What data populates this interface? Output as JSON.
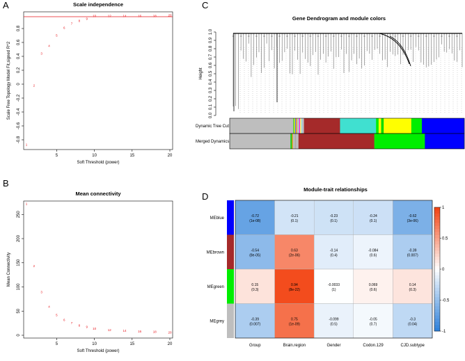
{
  "panels": {
    "A": {
      "letter": "A"
    },
    "B": {
      "letter": "B"
    },
    "C": {
      "letter": "C"
    },
    "D": {
      "letter": "D"
    }
  },
  "chart_data": [
    {
      "id": "A",
      "type": "scatter",
      "title": "Scale independence",
      "xlabel": "Soft Threshold (power)",
      "ylabel": "Scale Free Topology Model Fit,signed R^2",
      "x": [
        1,
        2,
        3,
        4,
        5,
        6,
        7,
        8,
        9,
        10,
        12,
        14,
        16,
        18,
        20
      ],
      "y": [
        -0.87,
        -0.02,
        0.44,
        0.55,
        0.7,
        0.81,
        0.87,
        0.91,
        0.94,
        0.98,
        0.98,
        0.98,
        0.98,
        0.98,
        0.99
      ],
      "point_labels": [
        "1",
        "2",
        "3",
        "4",
        "5",
        "6",
        "7",
        "8",
        "9",
        "10",
        "12",
        "14",
        "16",
        "18",
        "20"
      ],
      "xlim": [
        1,
        20
      ],
      "ylim": [
        -0.9,
        1.0
      ],
      "xticks": [
        5,
        10,
        15,
        20
      ],
      "yticks": [
        -0.8,
        -0.6,
        -0.4,
        -0.2,
        0.0,
        0.2,
        0.4,
        0.6,
        0.8
      ],
      "hline": 0.97,
      "colors": {
        "points": "#e8171d",
        "hline": "#e8171d"
      }
    },
    {
      "id": "B",
      "type": "scatter",
      "title": "Mean connectivity",
      "xlabel": "Soft Threshold (power)",
      "ylabel": "Mean Connectivity",
      "x": [
        1,
        2,
        3,
        4,
        5,
        6,
        7,
        8,
        9,
        10,
        12,
        14,
        16,
        18,
        20
      ],
      "y": [
        272,
        143,
        89,
        59,
        42,
        32,
        25,
        20,
        17,
        14,
        11,
        9,
        8,
        7,
        6
      ],
      "point_labels": [
        "1",
        "2",
        "3",
        "4",
        "5",
        "6",
        "7",
        "8",
        "9",
        "10",
        "12",
        "14",
        "16",
        "18",
        "20"
      ],
      "xlim": [
        1,
        20
      ],
      "ylim": [
        0,
        272
      ],
      "xticks": [
        5,
        10,
        15,
        20
      ],
      "yticks": [
        0,
        50,
        100,
        150,
        200,
        250
      ],
      "colors": {
        "points": "#e8171d"
      }
    },
    {
      "id": "C",
      "type": "dendrogram",
      "title": "Gene Dendrogram and module colors",
      "ylabel": "Height",
      "yticks": [
        "0.0",
        "0.1",
        "0.2",
        "0.3",
        "0.4",
        "0.5",
        "0.6",
        "0.7",
        "0.8",
        "0.9",
        "1.0"
      ],
      "rows": [
        "Dynamic Tree Cut",
        "Merged Dynamics"
      ],
      "color_bars": [
        [
          {
            "color": "#bebebe",
            "w": 0.3
          },
          {
            "color": "#22cc22",
            "w": 0.004
          },
          {
            "color": "#ffff00",
            "w": 0.004
          },
          {
            "color": "#4477ff",
            "w": 0.004
          },
          {
            "color": "#ff8800",
            "w": 0.004
          },
          {
            "color": "#bebebe",
            "w": 0.012
          },
          {
            "color": "#ff00ff",
            "w": 0.004
          },
          {
            "color": "#ffff66",
            "w": 0.006
          },
          {
            "color": "#88ccff",
            "w": 0.004
          },
          {
            "color": "#bebebe",
            "w": 0.008
          },
          {
            "color": "#a52a2a",
            "w": 0.17
          },
          {
            "color": "#40e0d0",
            "w": 0.17
          },
          {
            "color": "#00ee00",
            "w": 0.012
          },
          {
            "color": "#ffff00",
            "w": 0.012
          },
          {
            "color": "#00dd00",
            "w": 0.012
          },
          {
            "color": "#ffff00",
            "w": 0.13
          },
          {
            "color": "#00ee00",
            "w": 0.05
          },
          {
            "color": "#0000ff",
            "w": 0.2
          }
        ],
        [
          {
            "color": "#bebebe",
            "w": 0.3
          },
          {
            "color": "#22cc22",
            "w": 0.008
          },
          {
            "color": "#ff8800",
            "w": 0.004
          },
          {
            "color": "#bebebe",
            "w": 0.01
          },
          {
            "color": "#aaaaaa",
            "w": 0.006
          },
          {
            "color": "#bebebe",
            "w": 0.012
          },
          {
            "color": "#a52a2a",
            "w": 0.375
          },
          {
            "color": "#00ee00",
            "w": 0.25
          },
          {
            "color": "#0000ff",
            "w": 0.195
          }
        ]
      ],
      "colors": {
        "branches": "#000000"
      }
    },
    {
      "id": "D",
      "type": "heatmap",
      "title": "Module-trait relationships",
      "rows": [
        "MEblue",
        "MEbrown",
        "MEgreen",
        "MEgrey"
      ],
      "row_colors": [
        "#0000ff",
        "#a52a2a",
        "#00ee00",
        "#bebebe"
      ],
      "columns": [
        "Group",
        "Brain.region",
        "Gender",
        "Codon.129",
        "CJD.subtype"
      ],
      "values": [
        [
          -0.72,
          -0.21,
          -0.23,
          -0.24,
          -0.62
        ],
        [
          -0.54,
          0.63,
          -0.14,
          -0.084,
          -0.39
        ],
        [
          0.15,
          0.94,
          -0.0033,
          0.069,
          0.14
        ],
        [
          -0.39,
          0.75,
          -0.099,
          -0.05,
          -0.3
        ]
      ],
      "pvalues": [
        [
          "1e-08",
          "0.1",
          "0.1",
          "0.1",
          "3e-06"
        ],
        [
          "8e-05",
          "2e-06",
          "0.4",
          "0.6",
          "0.007"
        ],
        [
          "0.3",
          "8e-22",
          "1",
          "0.6",
          "0.3"
        ],
        [
          "0.007",
          "1e-09",
          "0.5",
          "0.7",
          "0.04"
        ]
      ],
      "display_values": [
        [
          "-0.72",
          "-0.21",
          "-0.23",
          "-0.24",
          "-0.62"
        ],
        [
          "-0.54",
          "0.63",
          "-0.14",
          "-0.084",
          "-0.39"
        ],
        [
          "0.15",
          "0.94",
          "-0.0033",
          "0.069",
          "0.14"
        ],
        [
          "-0.39",
          "0.75",
          "-0.099",
          "-0.05",
          "-0.3"
        ]
      ],
      "colorbar_ticks": [
        "1",
        "0.5",
        "0",
        "-0.5",
        "-1"
      ],
      "zlim": [
        -1,
        1
      ],
      "colors": {
        "neg": "#2b7fd9",
        "mid": "#ffffff",
        "pos": "#f2410f"
      }
    }
  ]
}
